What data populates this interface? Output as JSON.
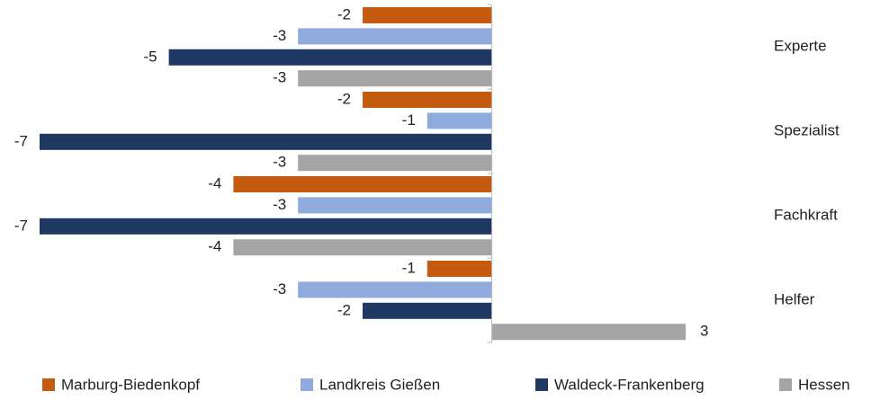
{
  "chart_data": {
    "type": "hbar",
    "categories": [
      "Experte",
      "Spezialist",
      "Fachkraft",
      "Helfer"
    ],
    "series": [
      {
        "name": "Marburg-Biedenkopf",
        "color": "#c55a11",
        "values": [
          -2,
          -2,
          -4,
          -1
        ]
      },
      {
        "name": "Landkreis Gießen",
        "color": "#8faadc",
        "values": [
          -3,
          -1,
          -3,
          -3
        ]
      },
      {
        "name": "Waldeck-Frankenberg",
        "color": "#203864",
        "values": [
          -5,
          -7,
          -7,
          -2
        ]
      },
      {
        "name": "Hessen",
        "color": "#a5a5a5",
        "values": [
          -3,
          -3,
          -4,
          3
        ]
      }
    ],
    "xlim": [
      -7,
      3
    ],
    "legend": "bottom"
  }
}
